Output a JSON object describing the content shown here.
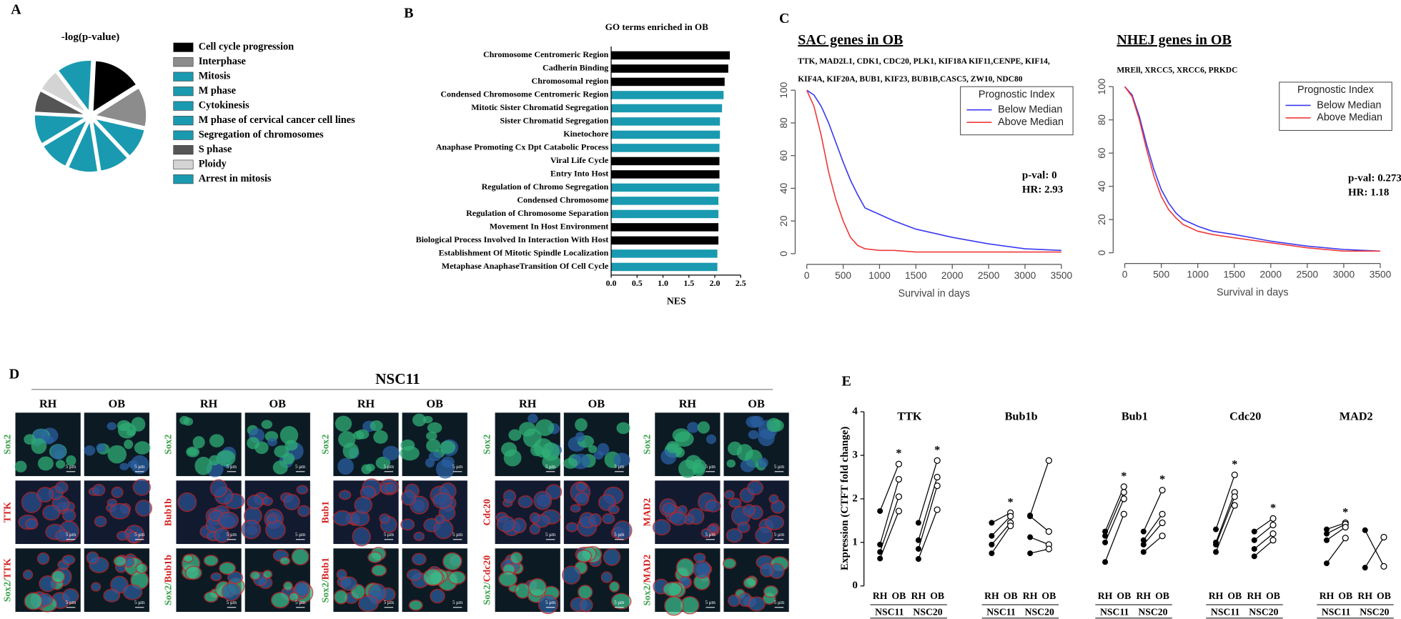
{
  "panel_labels": [
    "A",
    "B",
    "C",
    "D",
    "E"
  ],
  "chart_data": [
    {
      "type": "pie",
      "title": "-log(p-value)",
      "categories": [
        "Cell cycle progression",
        "Interphase",
        "Mitosis",
        "M phase",
        "Cytokinesis",
        "M phase of cervical cancer cell lines",
        "Segregation of chromosomes",
        "S phase",
        "Ploidy",
        "Arrest in mitosis"
      ],
      "values": [
        55,
        45,
        34,
        34,
        34,
        34,
        34,
        25,
        25,
        40
      ],
      "colors": [
        "#000000",
        "#8c8c8c",
        "#1a9ab0",
        "#1a9ab0",
        "#1a9ab0",
        "#1a9ab0",
        "#1a9ab0",
        "#555555",
        "#d4d4d4",
        "#1a9ab0"
      ]
    },
    {
      "type": "barh",
      "title": "GO terms enriched in OB",
      "xlabel": "NES",
      "categories": [
        "Chromosome Centromeric Region",
        "Cadherin Binding",
        "Chromosomal region",
        "Condensed Chromosome Centromeric Region",
        "Mitotic Sister Chromatid Segregation",
        "Sister Chromatid Segregation",
        "Kinetochore",
        "Anaphase Promoting Cx Dpt Catabolic Process",
        "Viral Life Cycle",
        "Entry Into Host",
        "Regulation of Chromo Segregation",
        "Condensed Chromosome",
        "Regulation of Chromosome Separation",
        "Movement In Host Environment",
        "Biological Process Involved In Interaction With Host",
        "Establishment Of Mitotic Spindle Localization",
        "Metaphase AnaphaseTransition Of Cell Cycle"
      ],
      "values": [
        2.29,
        2.26,
        2.19,
        2.17,
        2.14,
        2.1,
        2.1,
        2.09,
        2.09,
        2.09,
        2.09,
        2.07,
        2.07,
        2.07,
        2.07,
        2.05,
        2.05
      ],
      "colors": [
        "#000000",
        "#000000",
        "#000000",
        "#1a9ab0",
        "#1a9ab0",
        "#1a9ab0",
        "#1a9ab0",
        "#1a9ab0",
        "#000000",
        "#000000",
        "#1a9ab0",
        "#1a9ab0",
        "#1a9ab0",
        "#000000",
        "#000000",
        "#1a9ab0",
        "#1a9ab0"
      ],
      "xlim": [
        0,
        2.5
      ],
      "xticks": [
        {
          "value": 0,
          "label": "0.0"
        },
        0.5,
        {
          "value": 1,
          "label": "1.0"
        },
        1.5,
        {
          "value": 2,
          "label": "2.0"
        },
        2.5
      ]
    },
    {
      "type": "line",
      "title": "SAC genes in OB",
      "subtitle": [
        "TTK, MAD2L1, CDK1, CDC20, PLK1, KIF18A KIF11,CENPE, KIF14,",
        "KIF4A, KIF20A, BUB1, KIF23, BUB1B,CASC5, ZW10, NDC80"
      ],
      "xlabel": "Survival in days",
      "legend_title": "Prognostic Index",
      "annotations": [
        "p-val: 0",
        "HR: 2.93"
      ],
      "x": [
        0,
        100,
        200,
        300,
        400,
        500,
        600,
        700,
        800,
        1000,
        1200,
        1500,
        2000,
        2500,
        3000,
        3500
      ],
      "series": [
        {
          "name": "Below Median",
          "color": "#3a3af0",
          "values": [
            100,
            97,
            90,
            80,
            68,
            56,
            45,
            36,
            28,
            24,
            20,
            15,
            10,
            6,
            3,
            2
          ]
        },
        {
          "name": "Above Median",
          "color": "#f03a3a",
          "values": [
            100,
            90,
            72,
            50,
            33,
            20,
            10,
            5,
            3,
            2,
            2,
            1,
            1,
            1,
            1,
            1
          ]
        }
      ],
      "xlim": [
        0,
        3500
      ],
      "xticks": [
        0,
        500,
        1000,
        1500,
        2000,
        2500,
        3000,
        3500
      ],
      "ylim": [
        0,
        100
      ],
      "yticks": [
        0,
        20,
        40,
        60,
        80,
        100
      ]
    },
    {
      "type": "line",
      "title": "NHEJ genes in OB",
      "subtitle": [
        "MREll, XRCC5, XRCC6, PRKDC"
      ],
      "xlabel": "Survival in days",
      "legend_title": "Prognostic Index",
      "annotations": [
        "p-val: 0.273",
        "HR: 1.18"
      ],
      "x": [
        0,
        100,
        200,
        300,
        400,
        500,
        600,
        700,
        800,
        1000,
        1200,
        1500,
        2000,
        2500,
        3000,
        3500
      ],
      "series": [
        {
          "name": "Below Median",
          "color": "#3a3af0",
          "values": [
            100,
            95,
            82,
            65,
            50,
            38,
            30,
            24,
            20,
            16,
            13,
            11,
            7,
            4,
            2,
            1
          ]
        },
        {
          "name": "Above Median",
          "color": "#f03a3a",
          "values": [
            100,
            94,
            80,
            62,
            46,
            34,
            26,
            21,
            17,
            13,
            11,
            9,
            6,
            3,
            1,
            1
          ]
        }
      ],
      "xlim": [
        0,
        3500
      ],
      "xticks": [
        0,
        500,
        1000,
        1500,
        2000,
        2500,
        3000,
        3500
      ],
      "ylim": [
        0,
        100
      ],
      "yticks": [
        0,
        20,
        40,
        60,
        80,
        100
      ]
    },
    {
      "type": "paired_dot",
      "ylabel": "Expression (CTFT fold change)",
      "ylim": [
        0,
        4
      ],
      "yticks": [
        0,
        1,
        2,
        3,
        4
      ],
      "pair_labels": [
        "RH",
        "OB"
      ],
      "groups": [
        {
          "name": "TTK",
          "subgroups": [
            {
              "name": "NSC11",
              "RH": [
                1.72,
                0.95,
                0.78,
                0.63
              ],
              "OB": [
                2.8,
                2.45,
                2.05,
                1.72
              ],
              "significance": "*"
            },
            {
              "name": "NSC20",
              "RH": [
                1.45,
                1.05,
                0.85,
                0.62
              ],
              "OB": [
                2.88,
                2.5,
                2.3,
                1.75
              ],
              "significance": "*"
            }
          ]
        },
        {
          "name": "Bub1b",
          "subgroups": [
            {
              "name": "NSC11",
              "RH": [
                1.45,
                1.15,
                0.95,
                0.75
              ],
              "OB": [
                1.68,
                1.6,
                1.45,
                1.38
              ],
              "significance": "*"
            },
            {
              "name": "NSC20",
              "RH": [
                1.62,
                1.6,
                1.12,
                0.75
              ],
              "OB": [
                2.88,
                1.25,
                0.95,
                0.85
              ]
            }
          ]
        },
        {
          "name": "Bub1",
          "subgroups": [
            {
              "name": "NSC11",
              "RH": [
                1.25,
                1.15,
                1.0,
                0.55
              ],
              "OB": [
                2.28,
                2.15,
                2.0,
                1.65
              ],
              "significance": "*"
            },
            {
              "name": "NSC20",
              "RH": [
                1.25,
                1.05,
                0.95,
                0.78
              ],
              "OB": [
                2.2,
                1.65,
                1.45,
                1.15
              ],
              "significance": "*"
            }
          ]
        },
        {
          "name": "Cdc20",
          "subgroups": [
            {
              "name": "NSC11",
              "RH": [
                1.3,
                1.0,
                0.95,
                0.78
              ],
              "OB": [
                2.55,
                2.15,
                2.05,
                1.85
              ],
              "significance": "*"
            },
            {
              "name": "NSC20",
              "RH": [
                1.25,
                1.05,
                0.85,
                0.68
              ],
              "OB": [
                1.55,
                1.4,
                1.2,
                1.05
              ],
              "significance": "*"
            }
          ]
        },
        {
          "name": "MAD2",
          "subgroups": [
            {
              "name": "NSC11",
              "RH": [
                1.3,
                1.2,
                1.05,
                0.52
              ],
              "OB": [
                1.45,
                1.42,
                1.35,
                1.1
              ],
              "significance": "*"
            },
            {
              "name": "NSC20",
              "RH": [
                1.28,
                0.42
              ],
              "OB": [
                0.45,
                1.12
              ]
            }
          ]
        }
      ]
    }
  ],
  "figure_d": {
    "title": "NSC11",
    "column_labels": [
      "RH",
      "OB"
    ],
    "stain": "Sox2",
    "separator": "/",
    "scale_bar": "5 μm",
    "genes": [
      "TTK",
      "Bub1b",
      "Bub1",
      "Cdc20",
      "MAD2"
    ]
  }
}
